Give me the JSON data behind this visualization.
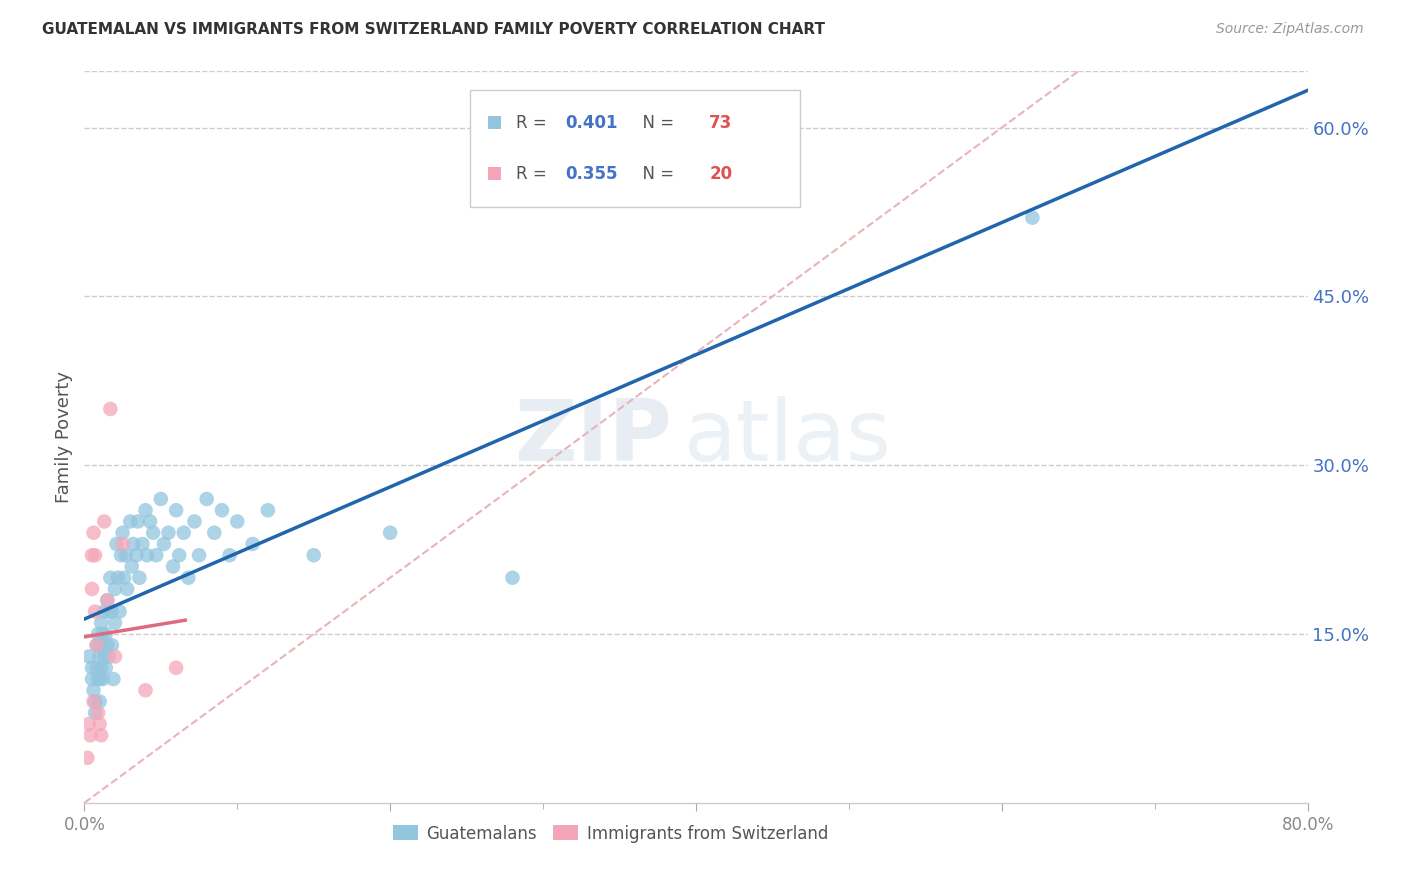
{
  "title": "GUATEMALAN VS IMMIGRANTS FROM SWITZERLAND FAMILY POVERTY CORRELATION CHART",
  "source": "Source: ZipAtlas.com",
  "ylabel": "Family Poverty",
  "xlim": [
    0,
    0.8
  ],
  "ylim": [
    0,
    0.65
  ],
  "yticks": [
    0.15,
    0.3,
    0.45,
    0.6
  ],
  "xticks": [
    0.0,
    0.2,
    0.4,
    0.6,
    0.8
  ],
  "blue_color": "#92c5de",
  "pink_color": "#f4a6b8",
  "trendline_blue": "#2166ac",
  "trendline_pink": "#e0697f",
  "ref_line_color": "#e8b4b8",
  "legend_r_blue": "0.401",
  "legend_n_blue": "73",
  "legend_r_pink": "0.355",
  "legend_n_pink": "20",
  "blue_x": [
    0.003,
    0.005,
    0.005,
    0.006,
    0.007,
    0.007,
    0.008,
    0.008,
    0.009,
    0.009,
    0.01,
    0.01,
    0.01,
    0.01,
    0.011,
    0.011,
    0.012,
    0.012,
    0.013,
    0.013,
    0.014,
    0.014,
    0.015,
    0.015,
    0.016,
    0.016,
    0.017,
    0.018,
    0.018,
    0.019,
    0.02,
    0.02,
    0.021,
    0.022,
    0.023,
    0.024,
    0.025,
    0.026,
    0.027,
    0.028,
    0.03,
    0.031,
    0.032,
    0.034,
    0.035,
    0.036,
    0.038,
    0.04,
    0.041,
    0.043,
    0.045,
    0.047,
    0.05,
    0.052,
    0.055,
    0.058,
    0.06,
    0.062,
    0.065,
    0.068,
    0.072,
    0.075,
    0.08,
    0.085,
    0.09,
    0.095,
    0.1,
    0.11,
    0.12,
    0.15,
    0.2,
    0.28,
    0.62
  ],
  "blue_y": [
    0.13,
    0.12,
    0.11,
    0.1,
    0.09,
    0.08,
    0.14,
    0.12,
    0.15,
    0.11,
    0.14,
    0.13,
    0.11,
    0.09,
    0.16,
    0.12,
    0.15,
    0.11,
    0.17,
    0.13,
    0.15,
    0.12,
    0.18,
    0.14,
    0.17,
    0.13,
    0.2,
    0.17,
    0.14,
    0.11,
    0.19,
    0.16,
    0.23,
    0.2,
    0.17,
    0.22,
    0.24,
    0.2,
    0.22,
    0.19,
    0.25,
    0.21,
    0.23,
    0.22,
    0.25,
    0.2,
    0.23,
    0.26,
    0.22,
    0.25,
    0.24,
    0.22,
    0.27,
    0.23,
    0.24,
    0.21,
    0.26,
    0.22,
    0.24,
    0.2,
    0.25,
    0.22,
    0.27,
    0.24,
    0.26,
    0.22,
    0.25,
    0.23,
    0.26,
    0.22,
    0.24,
    0.2,
    0.52
  ],
  "pink_x": [
    0.002,
    0.003,
    0.004,
    0.005,
    0.005,
    0.006,
    0.006,
    0.007,
    0.007,
    0.008,
    0.009,
    0.01,
    0.011,
    0.013,
    0.015,
    0.017,
    0.02,
    0.025,
    0.04,
    0.06
  ],
  "pink_y": [
    0.04,
    0.07,
    0.06,
    0.22,
    0.19,
    0.24,
    0.09,
    0.22,
    0.17,
    0.14,
    0.08,
    0.07,
    0.06,
    0.25,
    0.18,
    0.35,
    0.13,
    0.23,
    0.1,
    0.12
  ],
  "watermark_zip": "ZIP",
  "watermark_atlas": "atlas",
  "background_color": "#ffffff",
  "grid_color": "#cccccc",
  "label_color_blue": "#4472c4",
  "label_color_n": "#e05050",
  "tick_color": "#888888",
  "ylabel_color": "#555555"
}
